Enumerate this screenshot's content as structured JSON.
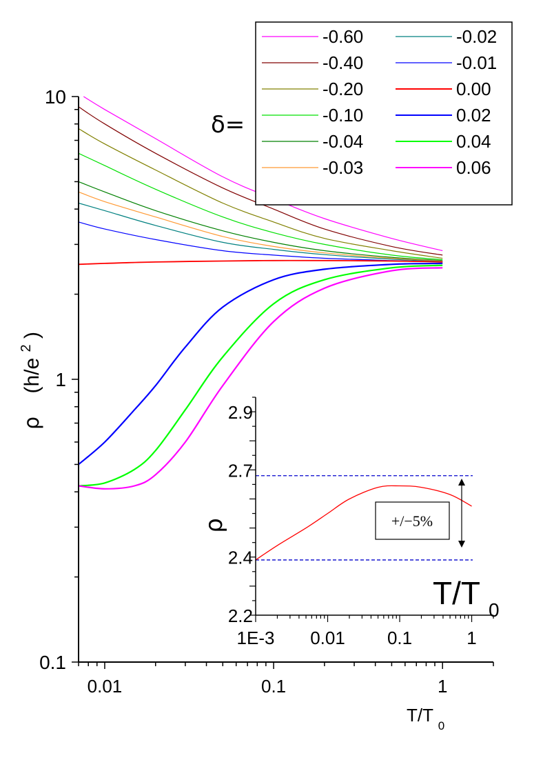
{
  "main_chart": {
    "type": "line",
    "xlabel_base": "T/T",
    "xlabel_sub": "0",
    "ylabel_sym": "ρ",
    "ylabel_unit_open": "(h/e",
    "ylabel_unit_sup": "2",
    "ylabel_unit_close": ")",
    "x_scale": "log",
    "y_scale": "log",
    "xlim": [
      0.007,
      2.0
    ],
    "ylim": [
      0.1,
      10
    ],
    "x_ticks": [
      {
        "value": 0.01,
        "label": "0.01"
      },
      {
        "value": 0.1,
        "label": "0.1"
      },
      {
        "value": 1,
        "label": "1"
      }
    ],
    "y_ticks": [
      {
        "value": 0.1,
        "label": "0.1"
      },
      {
        "value": 1,
        "label": "1"
      },
      {
        "value": 10,
        "label": "10"
      }
    ],
    "grid": false
  },
  "legend": {
    "symbol": "δ=",
    "placement": "top-right",
    "entries": [
      {
        "label": "-0.60",
        "color": "#ff00ff"
      },
      {
        "label": "-0.40",
        "color": "#800000"
      },
      {
        "label": "-0.20",
        "color": "#808000"
      },
      {
        "label": "-0.10",
        "color": "#00e000"
      },
      {
        "label": "-0.04",
        "color": "#008000"
      },
      {
        "label": "-0.03",
        "color": "#ff9933"
      },
      {
        "label": "-0.02",
        "color": "#008080"
      },
      {
        "label": "-0.01",
        "color": "#0000ff"
      },
      {
        "label": "0.00",
        "color": "#ff0000"
      },
      {
        "label": "0.02",
        "color": "#0000ff"
      },
      {
        "label": "0.04",
        "color": "#00ff00"
      },
      {
        "label": "0.06",
        "color": "#ff00ff"
      }
    ]
  },
  "chart_data": [
    {
      "type": "line",
      "x_scale": "log",
      "y_scale": "log",
      "xlim": [
        0.007,
        2.0
      ],
      "ylim": [
        0.1,
        10
      ],
      "series": [
        {
          "name": "-0.60",
          "color": "#ff00ff",
          "width": 1.2,
          "x": [
            0.0075,
            0.01,
            0.02,
            0.05,
            0.1,
            0.2,
            0.5,
            1.0
          ],
          "y": [
            10.0,
            9.0,
            7.1,
            5.2,
            4.35,
            3.7,
            3.15,
            2.85
          ]
        },
        {
          "name": "-0.40",
          "color": "#800000",
          "width": 1.2,
          "x": [
            0.007,
            0.01,
            0.02,
            0.05,
            0.1,
            0.2,
            0.5,
            1.0
          ],
          "y": [
            9.2,
            8.0,
            6.3,
            4.75,
            4.0,
            3.4,
            2.95,
            2.75
          ]
        },
        {
          "name": "-0.20",
          "color": "#808000",
          "width": 1.2,
          "x": [
            0.007,
            0.01,
            0.02,
            0.05,
            0.1,
            0.2,
            0.5,
            1.0
          ],
          "y": [
            7.7,
            6.8,
            5.5,
            4.2,
            3.6,
            3.15,
            2.85,
            2.68
          ]
        },
        {
          "name": "-0.10",
          "color": "#00e000",
          "width": 1.2,
          "x": [
            0.007,
            0.01,
            0.02,
            0.05,
            0.1,
            0.2,
            0.5,
            1.0
          ],
          "y": [
            6.3,
            5.7,
            4.7,
            3.75,
            3.3,
            3.0,
            2.75,
            2.65
          ]
        },
        {
          "name": "-0.04",
          "color": "#008000",
          "width": 1.2,
          "x": [
            0.007,
            0.01,
            0.02,
            0.05,
            0.1,
            0.2,
            0.5,
            1.0
          ],
          "y": [
            5.0,
            4.6,
            3.95,
            3.35,
            3.05,
            2.85,
            2.7,
            2.63
          ]
        },
        {
          "name": "-0.03",
          "color": "#ff9933",
          "width": 1.2,
          "x": [
            0.007,
            0.01,
            0.02,
            0.05,
            0.1,
            0.2,
            0.5,
            1.0
          ],
          "y": [
            4.6,
            4.25,
            3.75,
            3.2,
            2.95,
            2.8,
            2.68,
            2.62
          ]
        },
        {
          "name": "-0.02",
          "color": "#008080",
          "width": 1.2,
          "x": [
            0.007,
            0.01,
            0.02,
            0.05,
            0.1,
            0.2,
            0.5,
            1.0
          ],
          "y": [
            4.2,
            3.95,
            3.5,
            3.05,
            2.88,
            2.76,
            2.66,
            2.61
          ]
        },
        {
          "name": "-0.01",
          "color": "#0000ff",
          "width": 1.2,
          "x": [
            0.007,
            0.01,
            0.02,
            0.05,
            0.1,
            0.2,
            0.5,
            1.0
          ],
          "y": [
            3.6,
            3.4,
            3.12,
            2.85,
            2.75,
            2.68,
            2.63,
            2.6
          ]
        },
        {
          "name": "0.00",
          "color": "#ff0000",
          "width": 1.8,
          "x": [
            0.007,
            0.01,
            0.02,
            0.05,
            0.1,
            0.2,
            0.5,
            1.0
          ],
          "y": [
            2.55,
            2.57,
            2.6,
            2.62,
            2.63,
            2.63,
            2.62,
            2.6
          ]
        },
        {
          "name": "0.02",
          "color": "#0000ff",
          "width": 2.2,
          "x": [
            0.007,
            0.01,
            0.015,
            0.02,
            0.03,
            0.05,
            0.1,
            0.2,
            0.5,
            1.0
          ],
          "y": [
            0.5,
            0.6,
            0.78,
            0.95,
            1.3,
            1.8,
            2.25,
            2.45,
            2.55,
            2.57
          ]
        },
        {
          "name": "0.04",
          "color": "#00ff00",
          "width": 2.2,
          "x": [
            0.007,
            0.01,
            0.015,
            0.02,
            0.03,
            0.05,
            0.1,
            0.2,
            0.5,
            1.0
          ],
          "y": [
            0.42,
            0.43,
            0.48,
            0.56,
            0.78,
            1.2,
            1.85,
            2.25,
            2.48,
            2.53
          ]
        },
        {
          "name": "0.06",
          "color": "#ff00ff",
          "width": 2.2,
          "x": [
            0.007,
            0.01,
            0.015,
            0.02,
            0.03,
            0.05,
            0.1,
            0.2,
            0.5,
            1.0
          ],
          "y": [
            0.42,
            0.41,
            0.42,
            0.46,
            0.6,
            0.95,
            1.6,
            2.1,
            2.42,
            2.48
          ]
        }
      ]
    },
    {
      "type": "line",
      "x_scale": "log",
      "ylabel": "ρ",
      "xlabel_base": "T/T",
      "xlabel_sub": "0",
      "xlim": [
        0.001,
        2.0
      ],
      "ylim": [
        2.2,
        2.95
      ],
      "x_ticks": [
        {
          "value": 0.001,
          "label": "1E-3"
        },
        {
          "value": 0.01,
          "label": "0.01"
        },
        {
          "value": 0.1,
          "label": "0.1"
        },
        {
          "value": 1,
          "label": "1"
        }
      ],
      "y_ticks": [
        {
          "value": 2.2,
          "label": "2.2"
        },
        {
          "value": 2.4,
          "label": "2.4"
        },
        {
          "value": 2.7,
          "label": "2.7"
        },
        {
          "value": 2.9,
          "label": "2.9"
        }
      ],
      "series": [
        {
          "name": "",
          "color": "#ff0000",
          "width": 1.3,
          "x": [
            0.001,
            0.002,
            0.005,
            0.01,
            0.02,
            0.05,
            0.1,
            0.2,
            0.5,
            1.0
          ],
          "y": [
            2.39,
            2.44,
            2.5,
            2.55,
            2.6,
            2.64,
            2.645,
            2.64,
            2.615,
            2.575
          ]
        }
      ],
      "reference_lines": [
        2.68,
        2.39
      ],
      "annotation": "+/−5%"
    }
  ]
}
